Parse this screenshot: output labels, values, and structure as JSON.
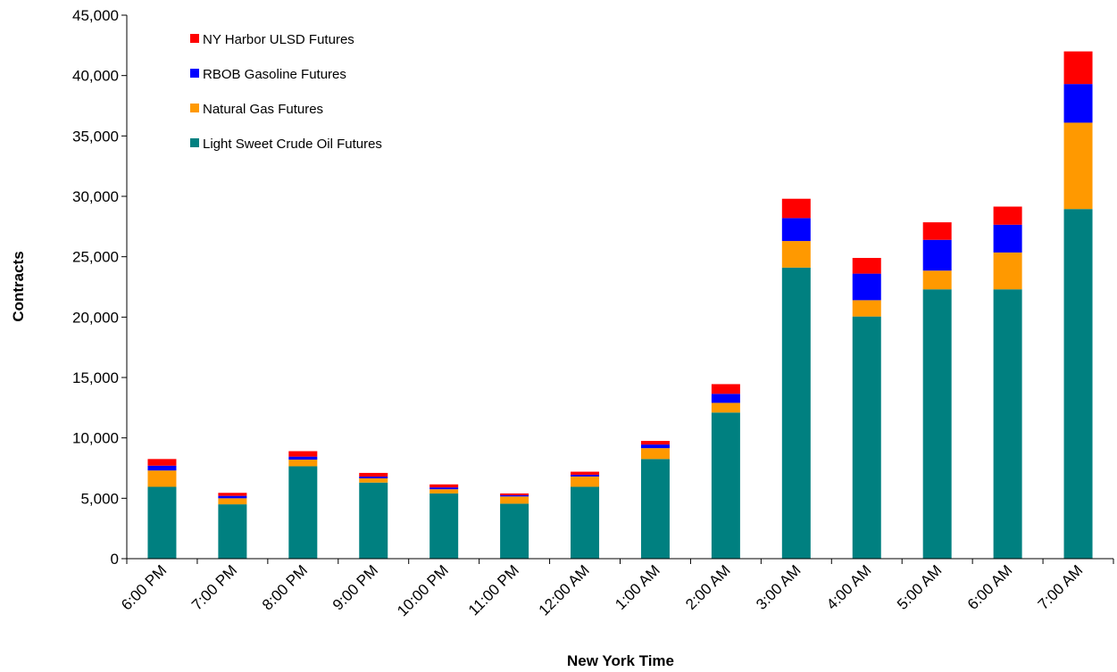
{
  "chart_data": {
    "type": "bar",
    "stacked": true,
    "title": "",
    "xlabel": "New York Time",
    "ylabel": "Contracts",
    "ylim": [
      0,
      45000
    ],
    "yticks": [
      0,
      5000,
      10000,
      15000,
      20000,
      25000,
      30000,
      35000,
      40000,
      45000
    ],
    "ytick_labels": [
      "0",
      "5,000",
      "10,000",
      "15,000",
      "20,000",
      "25,000",
      "30,000",
      "35,000",
      "40,000",
      "45,000"
    ],
    "grid": false,
    "legend_position": "top-left",
    "categories": [
      "6:00 PM",
      "7:00 PM",
      "8:00 PM",
      "9:00 PM",
      "10:00 PM",
      "11:00 PM",
      "12:00 AM",
      "1:00 AM",
      "2:00 AM",
      "3:00 AM",
      "4:00 AM",
      "5:00 AM",
      "6:00 AM",
      "7:00 AM"
    ],
    "series": [
      {
        "name": "Light Sweet Crude Oil Futures",
        "color": "#008080",
        "values": [
          5950,
          4500,
          7650,
          6300,
          5400,
          4550,
          5950,
          8250,
          12100,
          24100,
          20050,
          22300,
          22300,
          28950
        ]
      },
      {
        "name": "Natural Gas Futures",
        "color": "#FF9900",
        "values": [
          1350,
          500,
          550,
          350,
          350,
          600,
          850,
          900,
          800,
          2200,
          1350,
          1550,
          3050,
          7150
        ]
      },
      {
        "name": "RBOB Gasoline Futures",
        "color": "#0000FF",
        "values": [
          400,
          200,
          250,
          150,
          150,
          100,
          150,
          300,
          750,
          1900,
          2200,
          2550,
          2300,
          3200
        ]
      },
      {
        "name": "NY Harbor ULSD Futures",
        "color": "#FF0000",
        "values": [
          550,
          250,
          450,
          300,
          250,
          150,
          250,
          300,
          800,
          1600,
          1300,
          1450,
          1500,
          2700
        ]
      }
    ]
  }
}
